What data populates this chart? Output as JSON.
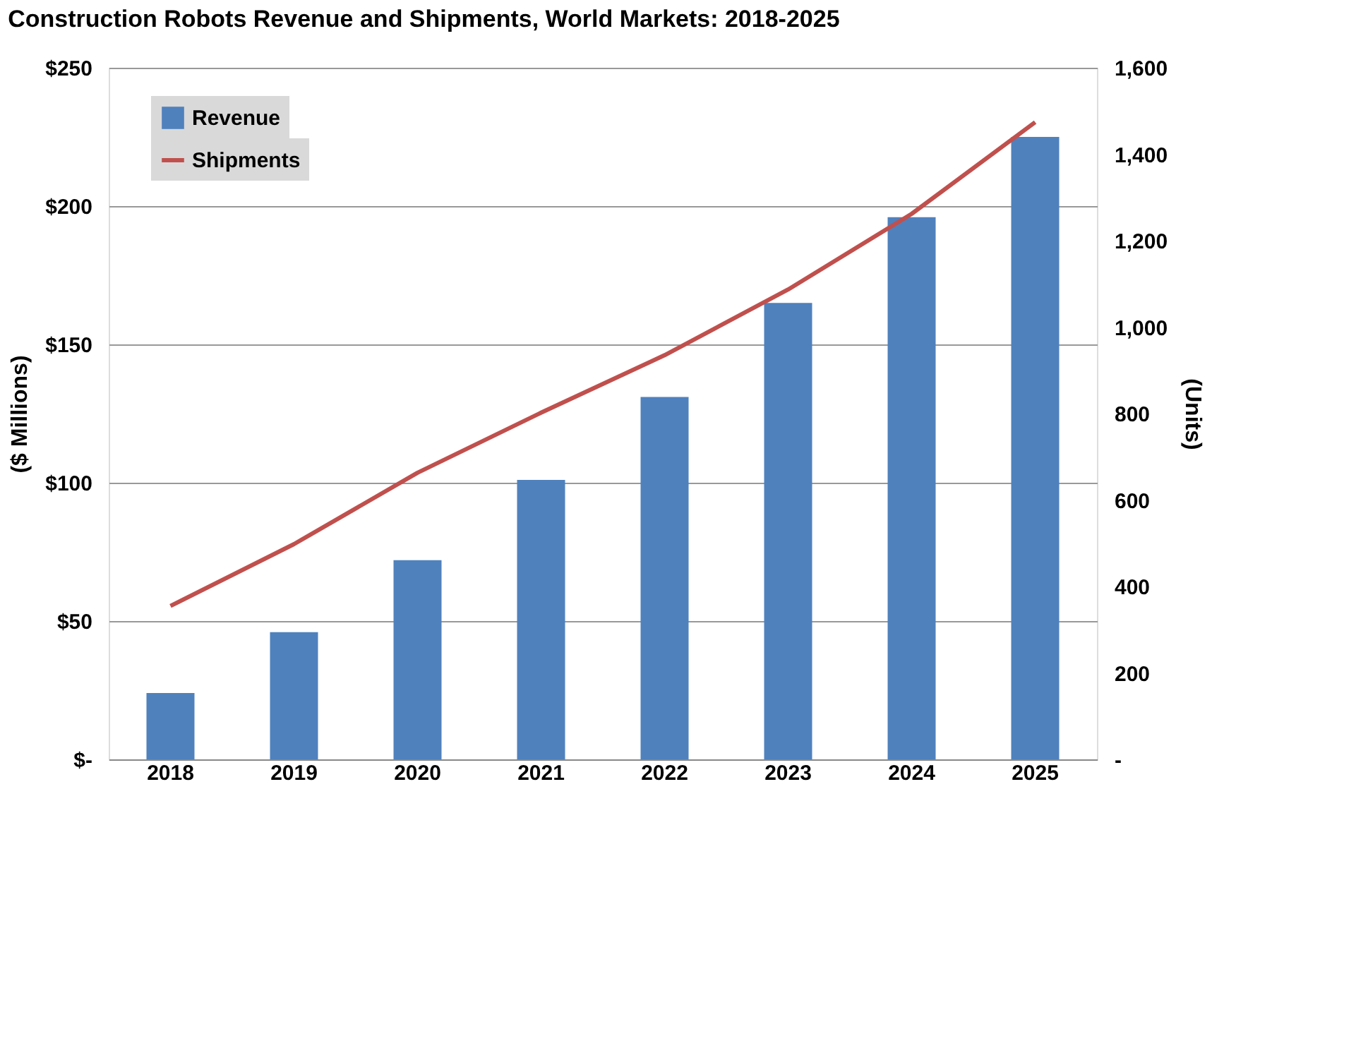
{
  "chart_data": {
    "type": "bar",
    "title": "Construction Robots Revenue and Shipments, World Markets: 2018-2025",
    "categories": [
      "2018",
      "2019",
      "2020",
      "2021",
      "2022",
      "2023",
      "2024",
      "2025"
    ],
    "series": [
      {
        "name": "Revenue",
        "color": "#4f81bd",
        "values": [
          24,
          46,
          72,
          101,
          131,
          165,
          196,
          225
        ]
      },
      {
        "name": "Shipments",
        "type": "line",
        "axis": "y2",
        "color": "#c0504d",
        "values": [
          355,
          498,
          663,
          802,
          935,
          1087,
          1262,
          1474
        ]
      }
    ],
    "ylabel": "($ Millions)",
    "y2label": "(Units)",
    "ylim": [
      0,
      250
    ],
    "yticks": [
      {
        "value": 0,
        "label": "$-"
      },
      {
        "value": 50,
        "label": "$50"
      },
      {
        "value": 100,
        "label": "$100"
      },
      {
        "value": 150,
        "label": "$150"
      },
      {
        "value": 200,
        "label": "$200"
      },
      {
        "value": 250,
        "label": "$250"
      }
    ],
    "y2lim": [
      0,
      1600
    ],
    "y2ticks": [
      {
        "value": 0,
        "label": "-"
      },
      200,
      400,
      600,
      800,
      {
        "value": 1000,
        "label": "1,000"
      },
      {
        "value": 1200,
        "label": "1,200"
      },
      {
        "value": 1400,
        "label": "1,400"
      },
      {
        "value": 1600,
        "label": "1,600"
      }
    ],
    "grid": "y",
    "legend": "top left"
  }
}
